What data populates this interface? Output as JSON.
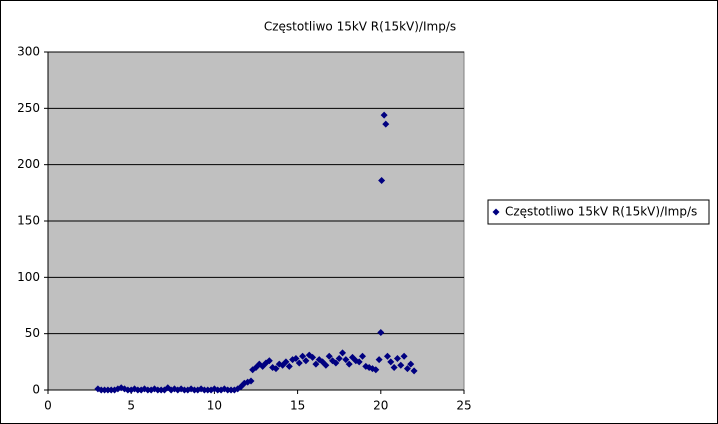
{
  "chart_data": {
    "type": "scatter",
    "title": "Częstotliwo 15kV R(15kV)/Imp/s",
    "series": [
      {
        "name": "Częstotliwo 15kV R(15kV)/Imp/s",
        "color": "#000080",
        "x": [
          3.0,
          3.2,
          3.4,
          3.6,
          3.8,
          4.0,
          4.2,
          4.4,
          4.6,
          4.8,
          5.0,
          5.2,
          5.4,
          5.6,
          5.8,
          6.0,
          6.2,
          6.4,
          6.6,
          6.8,
          7.0,
          7.2,
          7.4,
          7.6,
          7.8,
          8.0,
          8.2,
          8.4,
          8.6,
          8.8,
          9.0,
          9.2,
          9.4,
          9.6,
          9.8,
          10.0,
          10.2,
          10.4,
          10.6,
          10.8,
          11.0,
          11.2,
          11.4,
          11.6,
          11.8,
          12.0,
          12.2,
          12.3,
          12.5,
          12.7,
          12.9,
          13.1,
          13.3,
          13.5,
          13.7,
          13.9,
          14.1,
          14.3,
          14.5,
          14.7,
          14.9,
          15.1,
          15.3,
          15.5,
          15.7,
          15.9,
          16.1,
          16.3,
          16.5,
          16.7,
          16.9,
          17.1,
          17.3,
          17.5,
          17.7,
          17.9,
          18.1,
          18.3,
          18.5,
          18.7,
          18.9,
          19.1,
          19.3,
          19.5,
          19.7,
          19.9,
          20.0,
          20.05,
          20.2,
          20.3,
          20.4,
          20.6,
          20.8,
          21.0,
          21.2,
          21.4,
          21.6,
          21.8,
          22.0
        ],
        "values": [
          1,
          0,
          0,
          0,
          0,
          0,
          1,
          2,
          1,
          0,
          0,
          1,
          0,
          0,
          1,
          0,
          0,
          1,
          0,
          0,
          0,
          2,
          0,
          1,
          0,
          1,
          0,
          0,
          1,
          0,
          0,
          1,
          0,
          0,
          0,
          1,
          0,
          0,
          1,
          0,
          0,
          0,
          1,
          3,
          6,
          7,
          8,
          18,
          20,
          23,
          21,
          24,
          26,
          20,
          19,
          23,
          22,
          25,
          21,
          27,
          28,
          24,
          30,
          26,
          31,
          29,
          23,
          27,
          25,
          22,
          30,
          26,
          24,
          28,
          33,
          27,
          23,
          29,
          26,
          25,
          30,
          21,
          20,
          19,
          18,
          27,
          51,
          186,
          244,
          236,
          30,
          25,
          20,
          28,
          22,
          30,
          19,
          23,
          17
        ]
      }
    ],
    "xlim": [
      0,
      25
    ],
    "xticks": [
      0,
      5,
      10,
      15,
      20,
      25
    ],
    "ylim": [
      0,
      300
    ],
    "yticks": [
      0,
      50,
      100,
      150,
      200,
      250,
      300
    ],
    "grid": true,
    "legend": "right"
  }
}
